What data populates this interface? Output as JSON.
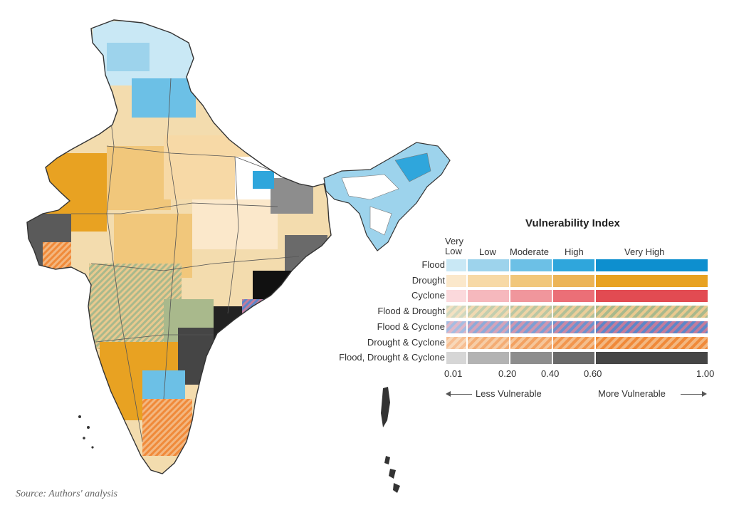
{
  "legend": {
    "title": "Vulnerability Index",
    "classes": [
      "Very Low",
      "Low",
      "Moderate",
      "High",
      "Very High"
    ],
    "ticks": [
      "0.01",
      "0.20",
      "0.40",
      "0.60",
      "1.00"
    ],
    "less": "Less Vulnerable",
    "more": "More Vulnerable",
    "rows": [
      {
        "label": "Flood",
        "colors": [
          "#c9e8f5",
          "#9dd3ec",
          "#6cc0e6",
          "#2fa6dc",
          "#0d8fcf"
        ]
      },
      {
        "label": "Drought",
        "colors": [
          "#fbe8cb",
          "#f7d9a6",
          "#f1c77b",
          "#ecb457",
          "#e8a222"
        ]
      },
      {
        "label": "Cyclone",
        "colors": [
          "#fbd9dc",
          "#f6b8bd",
          "#f0969c",
          "#eb6f77",
          "#e24b52"
        ]
      },
      {
        "label": "Flood & Drought",
        "colors": [
          "#a9b98c",
          "#e9c98f"
        ]
      },
      {
        "label": "Flood & Cyclone",
        "colors": [
          "#5d86c8",
          "#c27c9c"
        ]
      },
      {
        "label": "Drought & Cyclone",
        "colors": [
          "#f08a3a",
          "#f3b780"
        ]
      },
      {
        "label": "Flood, Drought & Cyclone",
        "colors": [
          "#d6d6d6",
          "#b3b3b3",
          "#8d8d8d",
          "#6a6a6a",
          "#454545"
        ]
      }
    ]
  },
  "source": "Source: Authors' analysis"
}
